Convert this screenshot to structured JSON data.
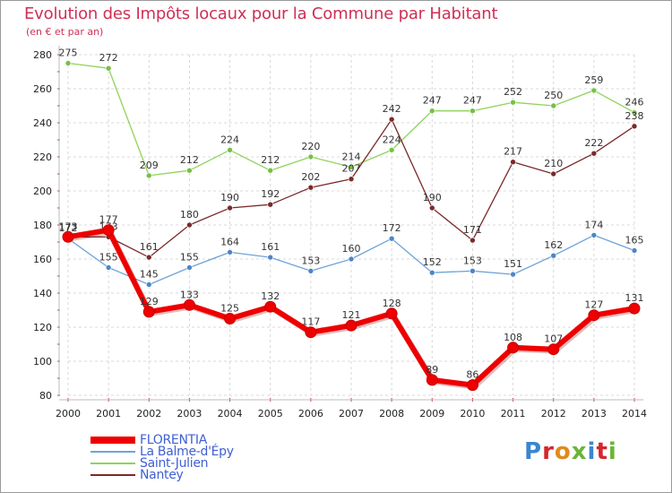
{
  "title": "Evolution des Impôts locaux pour la Commune par Habitant",
  "subtitle": "(en € et par an)",
  "logo": {
    "text": "Proxiti",
    "letter_colors": [
      "#3a86d0",
      "#d5262e",
      "#e08a1a",
      "#6ab536",
      "#3a86d0",
      "#d5262e",
      "#6ab536"
    ]
  },
  "chart_data": {
    "type": "line",
    "x": [
      "2000",
      "2001",
      "2002",
      "2003",
      "2004",
      "2005",
      "2006",
      "2007",
      "2008",
      "2009",
      "2010",
      "2011",
      "2012",
      "2013",
      "2014"
    ],
    "ylim": [
      80,
      280
    ],
    "yticks": [
      80,
      100,
      120,
      140,
      160,
      180,
      200,
      220,
      240,
      260,
      280
    ],
    "grid": true,
    "title": "Evolution des Impôts locaux pour la Commune par Habitant",
    "ylabel": "(en € et par an)",
    "legend_position": "bottom-left",
    "series": [
      {
        "name": "Saint-Julien",
        "color": "#8fd35a",
        "marker": "#76c043",
        "width": 1.3,
        "values": [
          275,
          272,
          209,
          212,
          224,
          212,
          220,
          214,
          224,
          247,
          247,
          252,
          250,
          259,
          246
        ],
        "labels": [
          "275",
          "272",
          "209",
          "212",
          "224",
          "212",
          "220",
          "214",
          "224",
          "247",
          "247",
          "252",
          "250",
          "259",
          "246"
        ]
      },
      {
        "name": "Nantey",
        "color": "#7a2a2a",
        "marker": "#7a2a2a",
        "width": 1.3,
        "values": [
          173,
          173,
          161,
          180,
          190,
          192,
          202,
          207,
          242,
          190,
          171,
          217,
          210,
          222,
          238
        ],
        "labels": [
          "173",
          "173",
          "161",
          "180",
          "190",
          "192",
          "202",
          "207",
          "242",
          "190",
          "171",
          "217",
          "210",
          "222",
          "238"
        ]
      },
      {
        "name": "La Balme-d'Épy",
        "color": "#6fa3d8",
        "marker": "#4c86c6",
        "width": 1.3,
        "values": [
          172,
          155,
          145,
          155,
          164,
          161,
          153,
          160,
          172,
          152,
          153,
          151,
          162,
          174,
          165
        ],
        "labels": [
          "172",
          "155",
          "145",
          "155",
          "164",
          "161",
          "153",
          "160",
          "172",
          "152",
          "153",
          "151",
          "162",
          "174",
          "165"
        ]
      },
      {
        "name": "FLORENTIA",
        "color": "#ee0000",
        "marker": "#ee0000",
        "width": 6,
        "values": [
          173,
          177,
          129,
          133,
          125,
          132,
          117,
          121,
          128,
          89,
          86,
          108,
          107,
          127,
          131
        ],
        "labels": [
          "173",
          "177",
          "129",
          "133",
          "125",
          "132",
          "117",
          "121",
          "128",
          "89",
          "86",
          "108",
          "107",
          "127",
          "131"
        ]
      }
    ]
  },
  "legend": [
    {
      "name": "FLORENTIA",
      "color": "#ee0000",
      "thickness": 8
    },
    {
      "name": "La Balme-d'Épy",
      "color": "#6fa3d8",
      "thickness": 2
    },
    {
      "name": "Saint-Julien",
      "color": "#8fd35a",
      "thickness": 2
    },
    {
      "name": "Nantey",
      "color": "#7a2a2a",
      "thickness": 2
    }
  ]
}
